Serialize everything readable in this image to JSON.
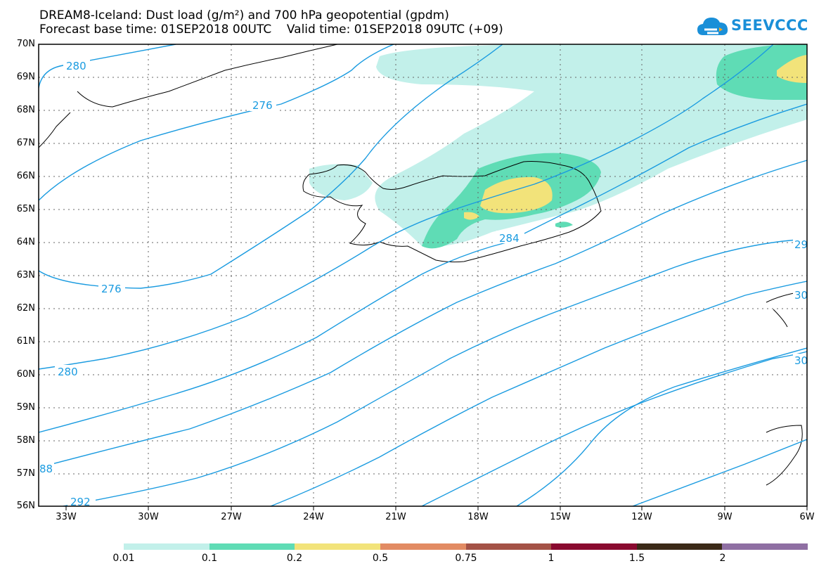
{
  "title": {
    "line1": "DREAM8-Iceland: Dust load (g/m²) and 700 hPa geopotential (gpdm)",
    "line2": "Forecast base time: 01SEP2018 00UTC    Valid time: 01SEP2018 09UTC (+09)"
  },
  "logo": {
    "text": "SEEVCCC",
    "icon": "cloud-icon",
    "color": "#1a8fd8"
  },
  "map": {
    "lat_labels": [
      "70N",
      "69N",
      "68N",
      "67N",
      "66N",
      "65N",
      "64N",
      "63N",
      "62N",
      "61N",
      "60N",
      "59N",
      "58N",
      "57N",
      "56N"
    ],
    "lon_labels": [
      "33W",
      "30W",
      "27W",
      "24W",
      "21W",
      "18W",
      "15W",
      "12W",
      "9W",
      "6W"
    ],
    "contour_labels": [
      "280",
      "276",
      "284",
      "276",
      "280",
      "88",
      "292",
      "29",
      "30",
      "30"
    ],
    "contour_color": "#1a9be0"
  },
  "legend": {
    "colors": [
      "#c2f0ea",
      "#5fdcb5",
      "#f2e37a",
      "#e28b63",
      "#a45246",
      "#8a0a30",
      "#3b2a18",
      "#8f6fa3"
    ],
    "labels": [
      "0.01",
      "0.1",
      "0.2",
      "0.5",
      "0.75",
      "1",
      "1.5",
      "2"
    ]
  }
}
